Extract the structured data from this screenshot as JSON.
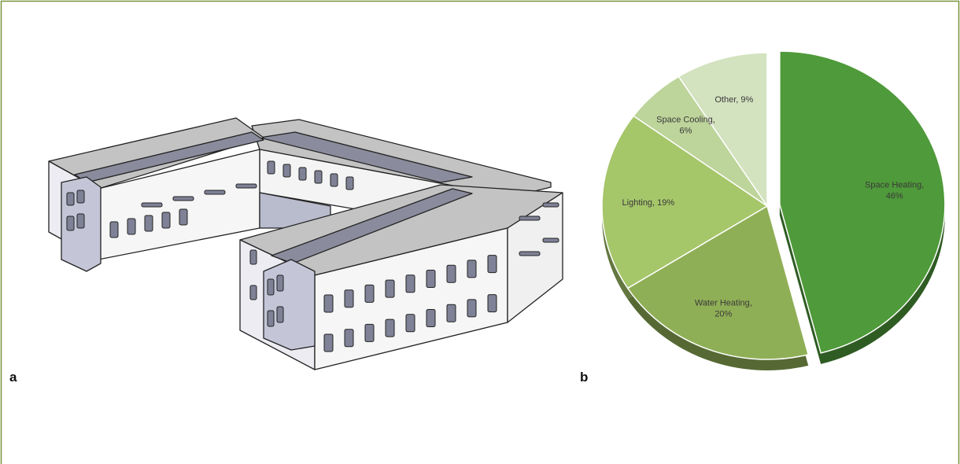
{
  "figure": {
    "panel_labels": [
      "a",
      "b"
    ]
  },
  "chart_data": {
    "type": "pie",
    "values": [
      46,
      20,
      19,
      6,
      9
    ],
    "value_labels": [
      "Space Heating, 46%",
      "Water Heating, 20%",
      "Lighting, 19%",
      "Space Cooling, 6%",
      "Other, 9%"
    ],
    "colors": [
      "#4f9a3a",
      "#8faf56",
      "#a6c66a",
      "#bdd49a",
      "#d3e2bf"
    ],
    "explode": [
      true,
      false,
      false,
      false,
      false
    ]
  }
}
